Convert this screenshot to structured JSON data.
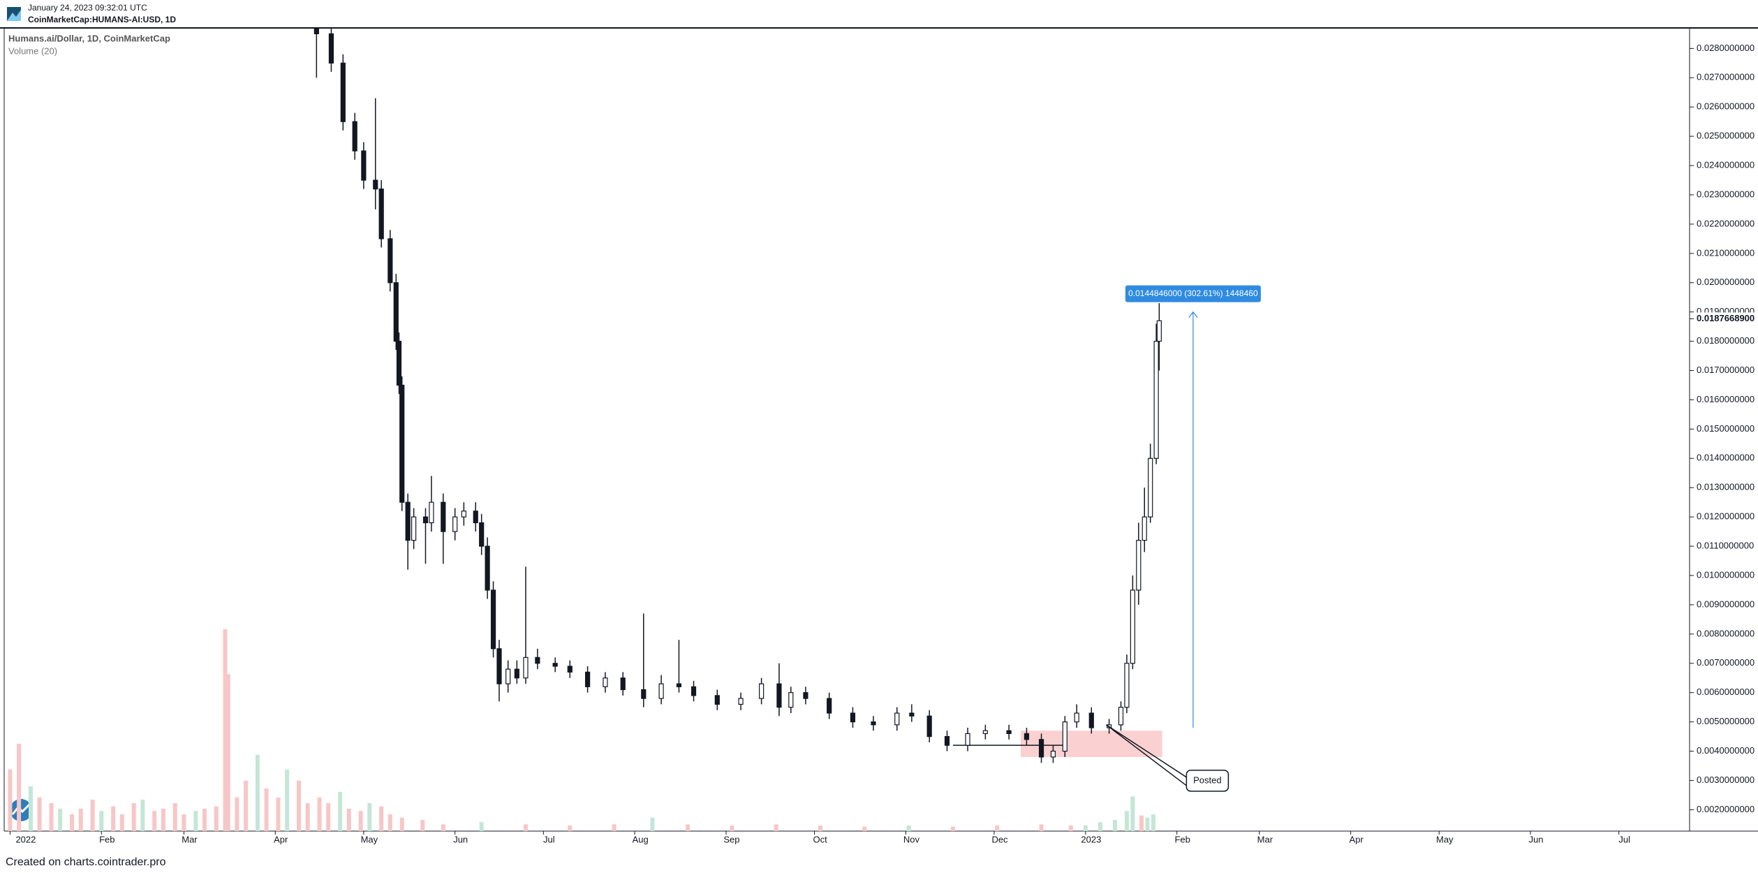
{
  "header": {
    "date": "January 24, 2023 09:32:01 UTC",
    "symbol": "CoinMarketCap:HUMANS-AI:USD, 1D"
  },
  "footer": "Created on charts.cointrader.pro",
  "chart_data": {
    "type": "candlestick",
    "title": "Humans.ai/Dollar, 1D, CoinMarketCap",
    "x": [
      104,
      109,
      113,
      117,
      120,
      124,
      126,
      129,
      131,
      132,
      133,
      135,
      137,
      141,
      143,
      147,
      151,
      154,
      158,
      160,
      162,
      164,
      166,
      169,
      172,
      175,
      179,
      185,
      190,
      196,
      202,
      208,
      215,
      221,
      227,
      232,
      240,
      248,
      255,
      261,
      265,
      270,
      278,
      286,
      293,
      301,
      306,
      312,
      318,
      325,
      331,
      339,
      345,
      350,
      354,
      358,
      362,
      367,
      373,
      377,
      379,
      381,
      383,
      385,
      387,
      389,
      390
    ],
    "open": [
      0.029,
      0.0285,
      0.0275,
      0.0255,
      0.0245,
      0.0235,
      0.0232,
      0.0215,
      0.02,
      0.018,
      0.0165,
      0.0125,
      0.0112,
      0.012,
      0.0118,
      0.0125,
      0.0115,
      0.012,
      0.0122,
      0.0118,
      0.011,
      0.0095,
      0.0075,
      0.0063,
      0.0068,
      0.0065,
      0.0072,
      0.007,
      0.0069,
      0.0067,
      0.0062,
      0.0065,
      0.0061,
      0.0058,
      0.0063,
      0.0062,
      0.0059,
      0.0056,
      0.0058,
      0.0063,
      0.0055,
      0.006,
      0.0058,
      0.0053,
      0.005,
      0.0049,
      0.0053,
      0.0052,
      0.0045,
      0.0042,
      0.0046,
      0.0047,
      0.0046,
      0.0044,
      0.0038,
      0.004,
      0.005,
      0.0053,
      0.0048,
      0.0049,
      0.0055,
      0.007,
      0.0095,
      0.0112,
      0.012,
      0.014,
      0.018
    ],
    "high": [
      0.0293,
      0.0288,
      0.0278,
      0.0258,
      0.0248,
      0.0263,
      0.0235,
      0.0218,
      0.0203,
      0.0183,
      0.0168,
      0.0128,
      0.0123,
      0.0123,
      0.0134,
      0.0128,
      0.0123,
      0.0125,
      0.0125,
      0.0121,
      0.0113,
      0.0098,
      0.0078,
      0.0071,
      0.0071,
      0.0103,
      0.0075,
      0.0072,
      0.0071,
      0.0069,
      0.0067,
      0.0067,
      0.0087,
      0.0066,
      0.0078,
      0.0064,
      0.0061,
      0.006,
      0.0065,
      0.007,
      0.0062,
      0.0062,
      0.006,
      0.0055,
      0.0052,
      0.0055,
      0.0056,
      0.0054,
      0.0047,
      0.0048,
      0.0049,
      0.0049,
      0.0048,
      0.0046,
      0.0042,
      0.0052,
      0.0056,
      0.0055,
      0.0051,
      0.0057,
      0.0073,
      0.01,
      0.0118,
      0.013,
      0.0145,
      0.0186,
      0.0193
    ],
    "low": [
      0.027,
      0.0272,
      0.0252,
      0.0242,
      0.0232,
      0.0225,
      0.0212,
      0.0197,
      0.0177,
      0.0162,
      0.0122,
      0.0102,
      0.0109,
      0.0104,
      0.0115,
      0.0104,
      0.0112,
      0.0117,
      0.0115,
      0.0107,
      0.0092,
      0.0072,
      0.0057,
      0.006,
      0.0063,
      0.0063,
      0.0068,
      0.0067,
      0.0065,
      0.006,
      0.006,
      0.0059,
      0.0055,
      0.0056,
      0.006,
      0.0057,
      0.0054,
      0.0054,
      0.0056,
      0.0052,
      0.0053,
      0.0056,
      0.0051,
      0.0048,
      0.0047,
      0.0047,
      0.005,
      0.0043,
      0.004,
      0.004,
      0.0044,
      0.0044,
      0.0042,
      0.0036,
      0.0036,
      0.0038,
      0.0048,
      0.0046,
      0.0046,
      0.0047,
      0.0053,
      0.0068,
      0.009,
      0.0108,
      0.0118,
      0.0138,
      0.017
    ],
    "close": [
      0.0285,
      0.0275,
      0.0255,
      0.0245,
      0.0235,
      0.0232,
      0.0215,
      0.02,
      0.018,
      0.0165,
      0.0125,
      0.0112,
      0.012,
      0.0118,
      0.0125,
      0.0115,
      0.012,
      0.0122,
      0.0118,
      0.011,
      0.0095,
      0.0075,
      0.0063,
      0.0068,
      0.0065,
      0.0072,
      0.007,
      0.0069,
      0.0067,
      0.0062,
      0.0065,
      0.0061,
      0.0058,
      0.0063,
      0.0062,
      0.0059,
      0.0056,
      0.0058,
      0.0063,
      0.0055,
      0.006,
      0.0058,
      0.0053,
      0.005,
      0.0049,
      0.0053,
      0.0052,
      0.0045,
      0.0042,
      0.0046,
      0.0047,
      0.0046,
      0.0044,
      0.0038,
      0.004,
      0.005,
      0.0053,
      0.0048,
      0.0049,
      0.0055,
      0.007,
      0.0095,
      0.0112,
      0.012,
      0.014,
      0.018,
      0.0187
    ],
    "color": "#131722",
    "volume": {
      "name": "Volume (20)",
      "x": [
        0,
        3,
        7,
        10,
        14,
        17,
        21,
        24,
        28,
        31,
        35,
        38,
        42,
        45,
        49,
        52,
        56,
        59,
        63,
        66,
        70,
        73,
        74,
        77,
        80,
        84,
        87,
        91,
        94,
        98,
        101,
        105,
        108,
        112,
        115,
        119,
        122,
        126,
        129,
        133,
        140,
        147,
        160,
        175,
        190,
        205,
        218,
        230,
        245,
        260,
        275,
        290,
        305,
        320,
        335,
        350,
        360,
        365,
        370,
        375,
        379,
        381,
        384,
        386,
        388
      ],
      "values": [
        55,
        78,
        40,
        30,
        25,
        20,
        15,
        20,
        28,
        18,
        22,
        15,
        25,
        28,
        18,
        20,
        25,
        15,
        18,
        20,
        22,
        180,
        140,
        30,
        45,
        68,
        38,
        30,
        55,
        45,
        25,
        30,
        25,
        35,
        20,
        18,
        25,
        22,
        15,
        12,
        10,
        6,
        8,
        6,
        5,
        6,
        12,
        6,
        5,
        6,
        5,
        4,
        5,
        4,
        5,
        6,
        5,
        5,
        8,
        10,
        18,
        31,
        14,
        12,
        15
      ],
      "colors": [
        "#f7c6c6",
        "#f7c6c6",
        "#c4e6d7",
        "#f7c6c6",
        "#f7c6c6",
        "#c4e6d7",
        "#f7c6c6",
        "#f7c6c6",
        "#f7c6c6",
        "#c4e6d7",
        "#f7c6c6",
        "#f7c6c6",
        "#f7c6c6",
        "#c4e6d7",
        "#f7c6c6",
        "#f7c6c6",
        "#f7c6c6",
        "#f7c6c6",
        "#c4e6d7",
        "#f7c6c6",
        "#f7c6c6",
        "#f7c6c6",
        "#f7c6c6",
        "#f7c6c6",
        "#f7c6c6",
        "#c4e6d7",
        "#f7c6c6",
        "#f7c6c6",
        "#c4e6d7",
        "#f7c6c6",
        "#f7c6c6",
        "#f7c6c6",
        "#f7c6c6",
        "#c4e6d7",
        "#f7c6c6",
        "#f7c6c6",
        "#c4e6d7",
        "#f7c6c6",
        "#f7c6c6",
        "#f7c6c6",
        "#f7c6c6",
        "#f7c6c6",
        "#c4e6d7",
        "#f7c6c6",
        "#f7c6c6",
        "#f7c6c6",
        "#c4e6d7",
        "#f7c6c6",
        "#f7c6c6",
        "#f7c6c6",
        "#f7c6c6",
        "#f7c6c6",
        "#c4e6d7",
        "#f7c6c6",
        "#f7c6c6",
        "#f7c6c6",
        "#f7c6c6",
        "#c4e6d7",
        "#c4e6d7",
        "#c4e6d7",
        "#c4e6d7",
        "#c4e6d7",
        "#f7c6c6",
        "#c4e6d7",
        "#c4e6d7"
      ]
    },
    "xlim": [
      -2,
      570
    ],
    "xticks": [
      {
        "value": 0,
        "label": "2022"
      },
      {
        "value": 31,
        "label": "Feb"
      },
      {
        "value": 59,
        "label": "Mar"
      },
      {
        "value": 90,
        "label": "Apr"
      },
      {
        "value": 120,
        "label": "May"
      },
      {
        "value": 151,
        "label": "Jun"
      },
      {
        "value": 181,
        "label": "Jul"
      },
      {
        "value": 212,
        "label": "Aug"
      },
      {
        "value": 243,
        "label": "Sep"
      },
      {
        "value": 273,
        "label": "Oct"
      },
      {
        "value": 304,
        "label": "Nov"
      },
      {
        "value": 334,
        "label": "Dec"
      },
      {
        "value": 365,
        "label": "2023"
      },
      {
        "value": 396,
        "label": "Feb"
      },
      {
        "value": 424,
        "label": "Mar"
      },
      {
        "value": 455,
        "label": "Apr"
      },
      {
        "value": 485,
        "label": "May"
      },
      {
        "value": 516,
        "label": "Jun"
      },
      {
        "value": 546,
        "label": "Jul"
      }
    ],
    "ylim": [
      0.00127,
      0.0287
    ],
    "yticks": [
      {
        "value": 0.002,
        "label": "0.0020000000"
      },
      {
        "value": 0.003,
        "label": "0.0030000000"
      },
      {
        "value": 0.004,
        "label": "0.0040000000"
      },
      {
        "value": 0.005,
        "label": "0.0050000000"
      },
      {
        "value": 0.006,
        "label": "0.0060000000"
      },
      {
        "value": 0.007,
        "label": "0.0070000000"
      },
      {
        "value": 0.008,
        "label": "0.0080000000"
      },
      {
        "value": 0.009,
        "label": "0.0090000000"
      },
      {
        "value": 0.01,
        "label": "0.0100000000"
      },
      {
        "value": 0.011,
        "label": "0.0110000000"
      },
      {
        "value": 0.012,
        "label": "0.0120000000"
      },
      {
        "value": 0.013,
        "label": "0.0130000000"
      },
      {
        "value": 0.014,
        "label": "0.0140000000"
      },
      {
        "value": 0.015,
        "label": "0.0150000000"
      },
      {
        "value": 0.016,
        "label": "0.0160000000"
      },
      {
        "value": 0.017,
        "label": "0.0170000000"
      },
      {
        "value": 0.018,
        "label": "0.0180000000"
      },
      {
        "value": 0.019,
        "label": "0.0190000000"
      },
      {
        "value": 0.02,
        "label": "0.0200000000"
      },
      {
        "value": 0.021,
        "label": "0.0210000000"
      },
      {
        "value": 0.022,
        "label": "0.0220000000"
      },
      {
        "value": 0.023,
        "label": "0.0230000000"
      },
      {
        "value": 0.024,
        "label": "0.0240000000"
      },
      {
        "value": 0.025,
        "label": "0.0250000000"
      },
      {
        "value": 0.026,
        "label": "0.0260000000"
      },
      {
        "value": 0.027,
        "label": "0.0270000000"
      },
      {
        "value": 0.028,
        "label": "0.0280000000"
      }
    ],
    "last_price": {
      "value": 0.01876689,
      "label": "0.0187668900"
    },
    "annotations": {
      "zone": {
        "x": [
          343,
          391
        ],
        "y": [
          0.0038,
          0.0047
        ],
        "color": "#fbd0d0"
      },
      "level": {
        "x": [
          320,
          358
        ],
        "y": 0.0042
      },
      "measure": {
        "x": 401.5,
        "y": [
          0.0048,
          0.019
        ],
        "label": "0.0144846000 (302.61%) 1448460",
        "color": "#2e8be0"
      },
      "callout": {
        "x": 372,
        "y": 0.0049,
        "label": "Posted"
      }
    }
  }
}
